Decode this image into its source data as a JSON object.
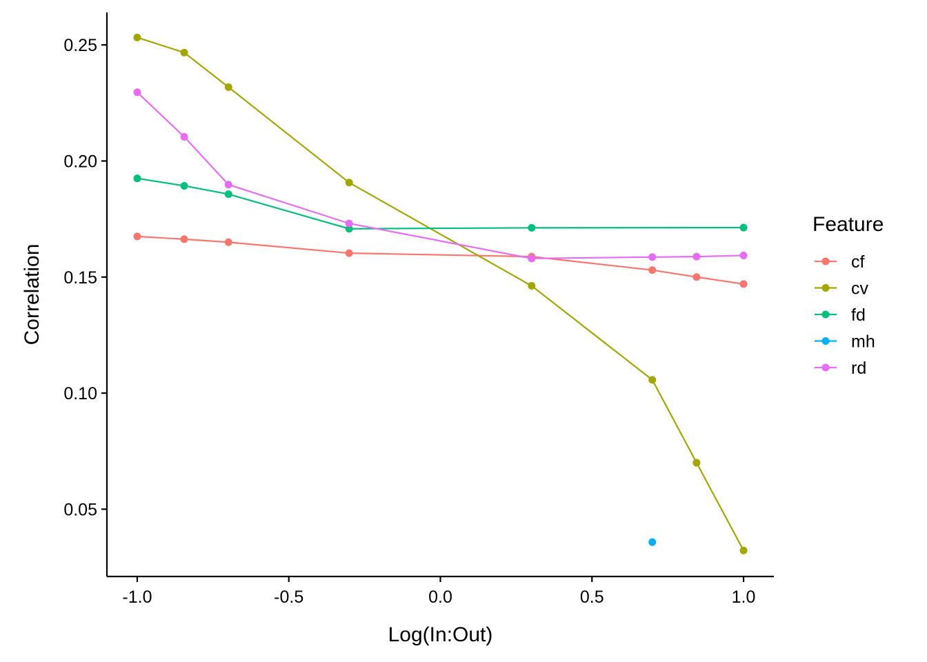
{
  "chart_data": {
    "type": "line",
    "xlabel": "Log(In:Out)",
    "ylabel": "Correlation",
    "xlim": [
      -1.1,
      1.1
    ],
    "ylim": [
      0.021,
      0.264
    ],
    "xticks": [
      -1.0,
      -0.5,
      0.0,
      0.5,
      1.0
    ],
    "xtick_labels": [
      "-1.0",
      "-0.5",
      "0.0",
      "0.5",
      "1.0"
    ],
    "yticks": [
      0.05,
      0.1,
      0.15,
      0.2,
      0.25
    ],
    "ytick_labels": [
      "0.05",
      "0.10",
      "0.15",
      "0.20",
      "0.25"
    ],
    "grid": false,
    "legend": {
      "title": "Feature",
      "position": "right"
    },
    "series": [
      {
        "name": "cf",
        "color": "#F8766D",
        "x": [
          -1.0,
          -0.845,
          -0.699,
          -0.301,
          0.301,
          0.699,
          0.845,
          1.0
        ],
        "y": [
          0.1675,
          0.1663,
          0.165,
          0.1603,
          0.1588,
          0.153,
          0.15,
          0.147
        ]
      },
      {
        "name": "cv",
        "color": "#A3A500",
        "x": [
          -1.0,
          -0.845,
          -0.699,
          -0.301,
          0.301,
          0.699,
          0.845,
          1.0
        ],
        "y": [
          0.2532,
          0.2467,
          0.2318,
          0.1907,
          0.1462,
          0.1057,
          0.07,
          0.0322
        ]
      },
      {
        "name": "fd",
        "color": "#00BF7D",
        "x": [
          -1.0,
          -0.845,
          -0.699,
          -0.301,
          0.301,
          1.0
        ],
        "y": [
          0.1925,
          0.1893,
          0.1857,
          0.1708,
          0.1712,
          0.1713
        ]
      },
      {
        "name": "mh",
        "color": "#00B0F6",
        "x": [
          0.699
        ],
        "y": [
          0.0358
        ]
      },
      {
        "name": "rd",
        "color": "#E76BF3",
        "x": [
          -1.0,
          -0.845,
          -0.699,
          -0.301,
          0.301,
          0.699,
          0.845,
          1.0
        ],
        "y": [
          0.2296,
          0.2104,
          0.1898,
          0.1731,
          0.158,
          0.1586,
          0.1588,
          0.1593
        ]
      }
    ]
  }
}
